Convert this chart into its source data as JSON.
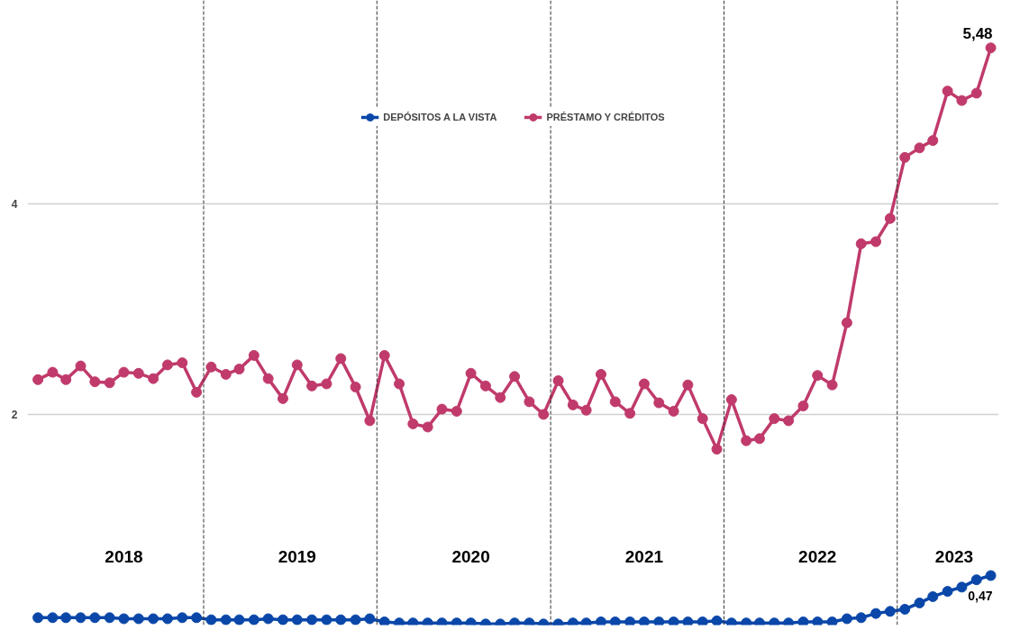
{
  "chart_data": {
    "type": "line",
    "x": [
      "2018-01",
      "2018-02",
      "2018-03",
      "2018-04",
      "2018-05",
      "2018-06",
      "2018-07",
      "2018-08",
      "2018-09",
      "2018-10",
      "2018-11",
      "2018-12",
      "2019-01",
      "2019-02",
      "2019-03",
      "2019-04",
      "2019-05",
      "2019-06",
      "2019-07",
      "2019-08",
      "2019-09",
      "2019-10",
      "2019-11",
      "2019-12",
      "2020-01",
      "2020-02",
      "2020-03",
      "2020-04",
      "2020-05",
      "2020-06",
      "2020-07",
      "2020-08",
      "2020-09",
      "2020-10",
      "2020-11",
      "2020-12",
      "2021-01",
      "2021-02",
      "2021-03",
      "2021-04",
      "2021-05",
      "2021-06",
      "2021-07",
      "2021-08",
      "2021-09",
      "2021-10",
      "2021-11",
      "2021-12",
      "2022-01",
      "2022-02",
      "2022-03",
      "2022-04",
      "2022-05",
      "2022-06",
      "2022-07",
      "2022-08",
      "2022-09",
      "2022-10",
      "2022-11",
      "2022-12",
      "2023-01",
      "2023-02",
      "2023-03",
      "2023-04",
      "2023-05",
      "2023-06",
      "2023-07"
    ],
    "series": [
      {
        "name": "DEPÓSITOS A LA VISTA",
        "color": "#0a47a9",
        "values": [
          0.07,
          0.07,
          0.07,
          0.07,
          0.07,
          0.07,
          0.06,
          0.06,
          0.06,
          0.06,
          0.07,
          0.07,
          0.05,
          0.05,
          0.05,
          0.05,
          0.06,
          0.05,
          0.05,
          0.05,
          0.05,
          0.05,
          0.05,
          0.06,
          0.03,
          0.02,
          0.02,
          0.02,
          0.02,
          0.02,
          0.02,
          0.01,
          0.01,
          0.02,
          0.02,
          0.01,
          0.01,
          0.02,
          0.02,
          0.03,
          0.03,
          0.03,
          0.03,
          0.03,
          0.03,
          0.03,
          0.03,
          0.04,
          0.02,
          0.02,
          0.02,
          0.02,
          0.02,
          0.03,
          0.03,
          0.03,
          0.06,
          0.07,
          0.11,
          0.13,
          0.15,
          0.21,
          0.27,
          0.32,
          0.36,
          0.43,
          0.47
        ],
        "value_labels": [
          null,
          null,
          null,
          null,
          null,
          null,
          null,
          null,
          null,
          null,
          null,
          null,
          null,
          null,
          null,
          null,
          null,
          null,
          null,
          null,
          null,
          null,
          null,
          null,
          null,
          null,
          null,
          null,
          null,
          null,
          null,
          null,
          null,
          null,
          null,
          null,
          null,
          null,
          null,
          null,
          null,
          null,
          null,
          null,
          null,
          null,
          null,
          null,
          null,
          null,
          null,
          null,
          null,
          null,
          null,
          null,
          null,
          null,
          null,
          null,
          null,
          null,
          null,
          null,
          null,
          null,
          "0,47"
        ]
      },
      {
        "name": "PRÉSTAMO Y CRÉDITOS",
        "color": "#c03a6b",
        "values": [
          2.33,
          2.4,
          2.33,
          2.46,
          2.31,
          2.3,
          2.4,
          2.39,
          2.34,
          2.47,
          2.49,
          2.21,
          2.45,
          2.38,
          2.43,
          2.56,
          2.34,
          2.15,
          2.47,
          2.27,
          2.29,
          2.53,
          2.26,
          1.94,
          2.56,
          2.29,
          1.91,
          1.88,
          2.05,
          2.03,
          2.39,
          2.27,
          2.16,
          2.36,
          2.12,
          2.0,
          2.32,
          2.09,
          2.04,
          2.38,
          2.12,
          2.01,
          2.29,
          2.11,
          2.03,
          2.28,
          1.96,
          1.67,
          2.14,
          1.75,
          1.77,
          1.96,
          1.94,
          2.08,
          2.37,
          2.28,
          2.87,
          3.62,
          3.64,
          3.86,
          4.44,
          4.53,
          4.6,
          5.07,
          4.98,
          5.05,
          5.48
        ],
        "value_labels": [
          null,
          null,
          null,
          null,
          null,
          null,
          null,
          null,
          null,
          null,
          null,
          null,
          null,
          null,
          null,
          null,
          null,
          null,
          null,
          null,
          null,
          null,
          null,
          null,
          null,
          null,
          null,
          null,
          null,
          null,
          null,
          null,
          null,
          null,
          null,
          null,
          null,
          null,
          null,
          null,
          null,
          null,
          null,
          null,
          null,
          null,
          null,
          null,
          null,
          null,
          null,
          null,
          null,
          null,
          null,
          null,
          null,
          null,
          null,
          null,
          null,
          null,
          null,
          null,
          null,
          null,
          "5,48"
        ]
      }
    ],
    "xlim": [
      "2017-12-10",
      "2023-07-18"
    ],
    "xticks": [
      {
        "value": "2018-07-01",
        "label": "2018"
      },
      {
        "value": "2019-07-01",
        "label": "2019"
      },
      {
        "value": "2020-07-01",
        "label": "2020"
      },
      {
        "value": "2021-07-01",
        "label": "2021"
      },
      {
        "value": "2022-07-01",
        "label": "2022"
      },
      {
        "value": "2023-04-15",
        "label": "2023"
      }
    ],
    "ylim": [
      0,
      5.93
    ],
    "yticks": [
      2,
      4
    ],
    "ref_lines": [
      {
        "axis": "x",
        "value": "2018-12-16",
        "label": null,
        "color": "#333333",
        "line_style": "dashed"
      },
      {
        "axis": "x",
        "value": "2019-12-16",
        "label": null,
        "color": "#333333",
        "line_style": "dashed"
      },
      {
        "axis": "x",
        "value": "2020-12-16",
        "label": null,
        "color": "#333333",
        "line_style": "dashed"
      },
      {
        "axis": "x",
        "value": "2021-12-16",
        "label": null,
        "color": "#333333",
        "line_style": "dashed"
      },
      {
        "axis": "x",
        "value": "2022-12-16",
        "label": null,
        "color": "#333333",
        "line_style": "dashed"
      }
    ],
    "grid": "y",
    "legend": "top",
    "marker": "circle",
    "line_style": "solid"
  }
}
